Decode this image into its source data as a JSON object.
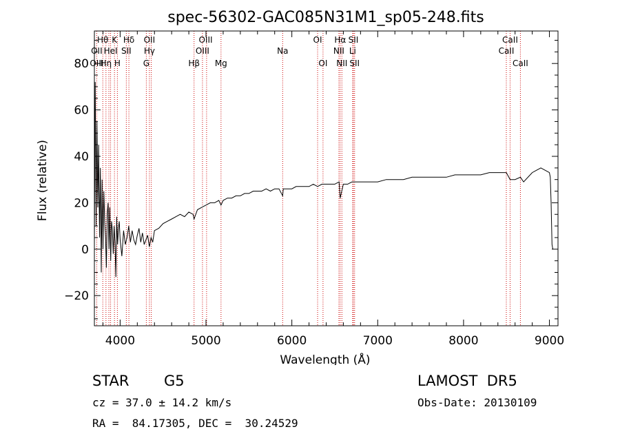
{
  "chart_data": {
    "type": "line",
    "title": "spec-56302-GAC085N31M1_sp05-248.fits",
    "xlabel": "Wavelength (Å)",
    "ylabel": "Flux (relative)",
    "xlim": [
      3700,
      9100
    ],
    "ylim": [
      -33,
      94
    ],
    "xticks": [
      4000,
      5000,
      6000,
      7000,
      8000,
      9000
    ],
    "yticks": [
      -20,
      0,
      20,
      40,
      60,
      80
    ],
    "grid": false,
    "spectrum": {
      "x": [
        3700,
        3710,
        3720,
        3730,
        3740,
        3750,
        3760,
        3770,
        3780,
        3790,
        3800,
        3810,
        3820,
        3830,
        3840,
        3850,
        3860,
        3870,
        3880,
        3890,
        3900,
        3910,
        3920,
        3930,
        3940,
        3950,
        3960,
        3970,
        3980,
        3990,
        4000,
        4020,
        4040,
        4060,
        4080,
        4100,
        4120,
        4140,
        4160,
        4180,
        4200,
        4220,
        4240,
        4260,
        4280,
        4300,
        4320,
        4340,
        4360,
        4380,
        4400,
        4450,
        4500,
        4550,
        4600,
        4650,
        4700,
        4750,
        4800,
        4850,
        4861,
        4900,
        4950,
        5000,
        5050,
        5100,
        5150,
        5175,
        5200,
        5250,
        5300,
        5350,
        5400,
        5450,
        5500,
        5550,
        5600,
        5650,
        5700,
        5750,
        5800,
        5850,
        5893,
        5900,
        5950,
        6000,
        6050,
        6100,
        6150,
        6200,
        6250,
        6300,
        6350,
        6400,
        6450,
        6500,
        6550,
        6563,
        6600,
        6650,
        6700,
        6750,
        6800,
        6850,
        6900,
        6950,
        7000,
        7100,
        7200,
        7300,
        7400,
        7500,
        7600,
        7700,
        7800,
        7900,
        8000,
        8100,
        8200,
        8300,
        8400,
        8498,
        8542,
        8600,
        8662,
        8700,
        8800,
        8850,
        8900,
        8950,
        9000,
        9010,
        9020,
        9030,
        9040
      ],
      "y": [
        2,
        72,
        10,
        55,
        18,
        45,
        5,
        35,
        -10,
        30,
        0,
        25,
        12,
        5,
        -8,
        15,
        20,
        0,
        18,
        -5,
        12,
        8,
        -2,
        10,
        3,
        -12,
        14,
        2,
        9,
        12,
        4,
        -3,
        8,
        2,
        5,
        10,
        3,
        8,
        4,
        2,
        6,
        9,
        3,
        7,
        2,
        4,
        6,
        1,
        5,
        3,
        8,
        9,
        11,
        12,
        13,
        14,
        15,
        14,
        16,
        15,
        13,
        17,
        18,
        19,
        20,
        20,
        21,
        19,
        21,
        22,
        22,
        23,
        23,
        24,
        24,
        25,
        25,
        25,
        26,
        25,
        26,
        26,
        23,
        26,
        26,
        26,
        27,
        27,
        27,
        27,
        28,
        27,
        28,
        28,
        28,
        28,
        29,
        22,
        28,
        28,
        29,
        29,
        29,
        29,
        29,
        29,
        29,
        30,
        30,
        30,
        31,
        31,
        31,
        31,
        31,
        32,
        32,
        32,
        32,
        33,
        33,
        33,
        30,
        30,
        31,
        29,
        33,
        34,
        35,
        34,
        33,
        31,
        20,
        2,
        0
      ]
    },
    "lines_row1": [
      {
        "label": "Hθ",
        "x": 3798
      },
      {
        "label": "K",
        "x": 3934
      },
      {
        "label": "Hδ",
        "x": 4102
      },
      {
        "label": "OII",
        "x": 4341
      },
      {
        "label": "OIII",
        "x": 4996
      },
      {
        "label": "OI",
        "x": 6300
      },
      {
        "label": "Hα",
        "x": 6563
      },
      {
        "label": "SII",
        "x": 6717
      },
      {
        "label": "CaII",
        "x": 8542
      }
    ],
    "lines_row2": [
      {
        "label": "OII",
        "x": 3727
      },
      {
        "label": "HeI",
        "x": 3889
      },
      {
        "label": "SII",
        "x": 4072
      },
      {
        "label": "Hγ",
        "x": 4341
      },
      {
        "label": "OIII",
        "x": 4959
      },
      {
        "label": "Na",
        "x": 5893
      },
      {
        "label": "NII",
        "x": 6548
      },
      {
        "label": "Li",
        "x": 6708
      },
      {
        "label": "CaII",
        "x": 8498
      }
    ],
    "lines_row3": [
      {
        "label": "OIII",
        "x": 3727
      },
      {
        "label": "Hη",
        "x": 3835
      },
      {
        "label": "H",
        "x": 3968
      },
      {
        "label": "G",
        "x": 4305
      },
      {
        "label": "Hβ",
        "x": 4861
      },
      {
        "label": "Mg",
        "x": 5175
      },
      {
        "label": "OI",
        "x": 6363
      },
      {
        "label": "NII",
        "x": 6583
      },
      {
        "label": "SII",
        "x": 6731
      },
      {
        "label": "CaII",
        "x": 8662
      }
    ],
    "line_markers": [
      3727,
      3798,
      3835,
      3869,
      3889,
      3934,
      3968,
      4072,
      4102,
      4305,
      4341,
      4363,
      4861,
      4959,
      5007,
      5175,
      5893,
      6300,
      6363,
      6548,
      6563,
      6583,
      6708,
      6717,
      6731,
      8498,
      8542,
      8662
    ],
    "colors": {
      "spectrum": "#000000",
      "line_markers": "#cc0000",
      "axes": "#000000"
    }
  },
  "info": {
    "object_class": "STAR",
    "subclass": "G5",
    "survey": "LAMOST  DR5",
    "redshift": "cz = 37.0 ± 14.2 km/s",
    "obs_date": "Obs-Date: 20130109",
    "coords": "RA =  84.17305, DEC =  30.24529"
  }
}
